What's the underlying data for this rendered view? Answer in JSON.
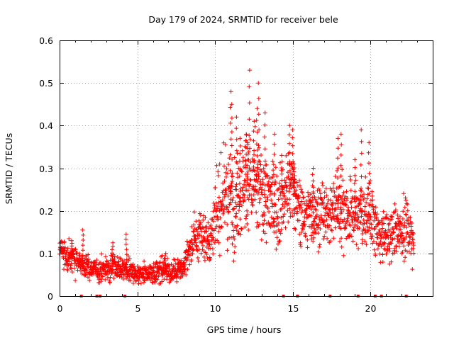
{
  "chart_data": {
    "type": "scatter",
    "title": "Day 179 of 2024, SRMTID for receiver bele",
    "xlabel": "GPS time / hours",
    "ylabel": "SRMTID / TECUs",
    "xlim": [
      0,
      24
    ],
    "ylim": [
      0,
      0.6
    ],
    "xticks": [
      0,
      5,
      10,
      15,
      20
    ],
    "xtick_labels": [
      "0",
      "5",
      "10",
      "15",
      "20"
    ],
    "yticks": [
      0,
      0.1,
      0.2,
      0.3,
      0.4,
      0.5,
      0.6
    ],
    "ytick_labels": [
      "0",
      "0.1",
      "0.2",
      "0.3",
      "0.4",
      "0.5",
      "0.6"
    ],
    "grid": true,
    "marker": "plus",
    "color": "#ff0000",
    "series": [
      {
        "name": "SRMTID",
        "profile": [
          [
            0.0,
            0.115,
            0.022
          ],
          [
            0.5,
            0.09,
            0.022
          ],
          [
            1.0,
            0.085,
            0.025
          ],
          [
            1.5,
            0.072,
            0.018
          ],
          [
            2.0,
            0.065,
            0.015
          ],
          [
            2.5,
            0.06,
            0.016
          ],
          [
            3.0,
            0.065,
            0.02
          ],
          [
            3.5,
            0.07,
            0.022
          ],
          [
            4.0,
            0.065,
            0.018
          ],
          [
            4.5,
            0.06,
            0.02
          ],
          [
            5.0,
            0.045,
            0.013
          ],
          [
            5.5,
            0.05,
            0.016
          ],
          [
            6.0,
            0.055,
            0.018
          ],
          [
            6.5,
            0.06,
            0.02
          ],
          [
            7.0,
            0.06,
            0.018
          ],
          [
            7.5,
            0.058,
            0.017
          ],
          [
            8.0,
            0.075,
            0.02
          ],
          [
            8.5,
            0.12,
            0.03
          ],
          [
            9.0,
            0.15,
            0.04
          ],
          [
            9.5,
            0.13,
            0.035
          ],
          [
            10.0,
            0.17,
            0.05
          ],
          [
            10.5,
            0.24,
            0.065
          ],
          [
            11.0,
            0.22,
            0.07
          ],
          [
            11.5,
            0.24,
            0.07
          ],
          [
            12.0,
            0.27,
            0.07
          ],
          [
            12.5,
            0.25,
            0.07
          ],
          [
            13.0,
            0.24,
            0.065
          ],
          [
            13.5,
            0.22,
            0.06
          ],
          [
            14.0,
            0.21,
            0.06
          ],
          [
            14.5,
            0.24,
            0.065
          ],
          [
            15.0,
            0.26,
            0.055
          ],
          [
            15.5,
            0.19,
            0.05
          ],
          [
            16.0,
            0.19,
            0.045
          ],
          [
            16.5,
            0.2,
            0.05
          ],
          [
            17.0,
            0.19,
            0.045
          ],
          [
            17.5,
            0.2,
            0.05
          ],
          [
            18.0,
            0.21,
            0.055
          ],
          [
            18.5,
            0.2,
            0.05
          ],
          [
            19.0,
            0.19,
            0.05
          ],
          [
            19.5,
            0.2,
            0.055
          ],
          [
            20.0,
            0.19,
            0.05
          ],
          [
            20.5,
            0.14,
            0.035
          ],
          [
            21.0,
            0.14,
            0.04
          ],
          [
            21.5,
            0.15,
            0.04
          ],
          [
            22.0,
            0.16,
            0.04
          ],
          [
            22.5,
            0.15,
            0.05
          ],
          [
            22.8,
            0.14,
            0.04
          ]
        ],
        "peaks": [
          [
            11.0,
            0.48
          ],
          [
            11.1,
            0.45
          ],
          [
            11.4,
            0.42
          ],
          [
            11.6,
            0.37
          ],
          [
            12.0,
            0.38
          ],
          [
            12.1,
            0.36
          ],
          [
            12.2,
            0.53
          ],
          [
            12.5,
            0.41
          ],
          [
            12.7,
            0.44
          ],
          [
            12.8,
            0.5
          ],
          [
            13.2,
            0.43
          ],
          [
            13.8,
            0.38
          ],
          [
            14.3,
            0.33
          ],
          [
            14.8,
            0.4
          ],
          [
            15.0,
            0.39
          ],
          [
            15.1,
            0.31
          ],
          [
            16.3,
            0.3
          ],
          [
            17.9,
            0.37
          ],
          [
            18.1,
            0.38
          ],
          [
            19.0,
            0.32
          ],
          [
            19.4,
            0.39
          ],
          [
            19.9,
            0.36
          ],
          [
            0.8,
            0.13
          ],
          [
            1.5,
            0.155
          ],
          [
            3.4,
            0.125
          ],
          [
            4.3,
            0.145
          ],
          [
            6.8,
            0.1
          ]
        ],
        "cycle_slip_times": [
          1.4,
          2.4,
          2.6,
          4.2,
          14.4,
          15.3,
          17.4,
          19.2,
          20.3,
          20.7,
          22.3
        ]
      }
    ]
  }
}
